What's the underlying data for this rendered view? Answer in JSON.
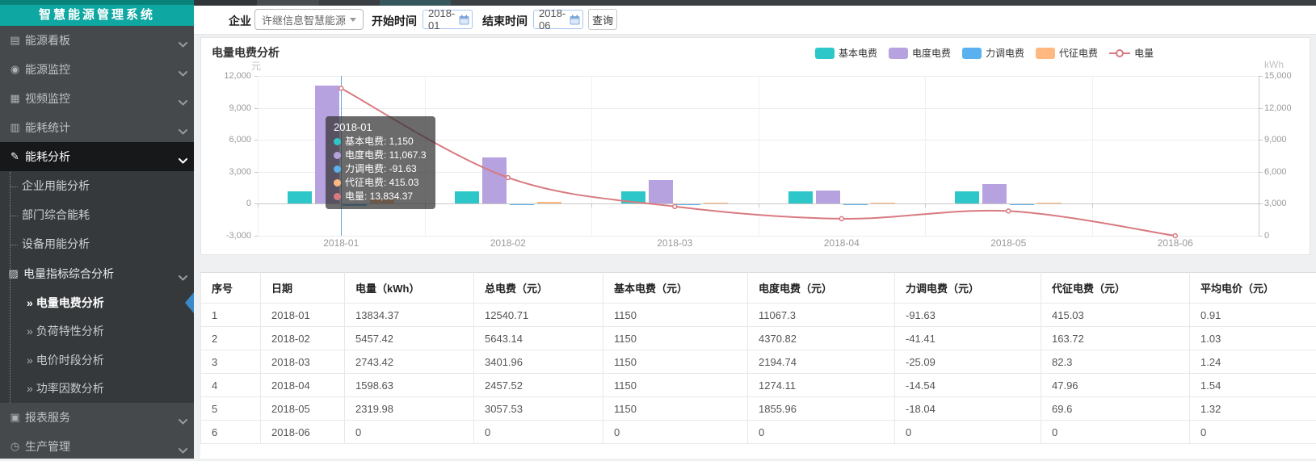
{
  "sidebar": {
    "title": "智慧能源管理系统",
    "menu": [
      {
        "label": "能源看板",
        "icon": "board-icon",
        "glyph": "▤",
        "level": 1,
        "chevron": true
      },
      {
        "label": "能源监控",
        "icon": "camera-icon",
        "glyph": "◉",
        "level": 1,
        "chevron": true
      },
      {
        "label": "视频监控",
        "icon": "video-wall-icon",
        "glyph": "▦",
        "level": 1,
        "chevron": true
      },
      {
        "label": "能耗统计",
        "icon": "bar-stats-icon",
        "glyph": "▥",
        "level": 1,
        "chevron": true
      },
      {
        "label": "能耗分析",
        "icon": "analysis-pen-icon",
        "glyph": "✎",
        "level": 1,
        "chevron": true,
        "state": "active"
      },
      {
        "label": "企业用能分析",
        "level": 2
      },
      {
        "label": "部门综合能耗",
        "level": 2
      },
      {
        "label": "设备用能分析",
        "level": 2
      },
      {
        "label": "电量指标综合分析",
        "icon": "chart-grid-icon",
        "glyph": "▨",
        "level": 2,
        "group": true,
        "chevron": true
      },
      {
        "label": "电量电费分析",
        "level": 3,
        "state": "selected"
      },
      {
        "label": "负荷特性分析",
        "level": 3
      },
      {
        "label": "电价时段分析",
        "level": 3
      },
      {
        "label": "功率因数分析",
        "level": 3
      },
      {
        "label": "报表服务",
        "icon": "report-icon",
        "glyph": "▣",
        "level": 1,
        "chevron": true
      },
      {
        "label": "生产管理",
        "icon": "clock-icon",
        "glyph": "◷",
        "level": 1,
        "chevron": true
      }
    ]
  },
  "topbar": {
    "company_label": "企业",
    "company_value": "许继信息智慧能源",
    "start_label": "开始时间",
    "start_value": "2018-01",
    "end_label": "结束时间",
    "end_value": "2018-06",
    "search_button": "查询"
  },
  "chart": {
    "title": "电量电费分析",
    "legend": [
      {
        "name": "基本电费",
        "type": "bar",
        "color": "#2ec7c9"
      },
      {
        "name": "电度电费",
        "type": "bar",
        "color": "#b6a2de"
      },
      {
        "name": "力调电费",
        "type": "bar",
        "color": "#5ab1ef"
      },
      {
        "name": "代征电费",
        "type": "bar",
        "color": "#ffb980"
      },
      {
        "name": "电量",
        "type": "line",
        "color": "#d87a80"
      }
    ],
    "tooltip": {
      "title": "2018-01",
      "rows": [
        {
          "name": "基本电费",
          "value": "1,150",
          "color": "#2ec7c9"
        },
        {
          "name": "电度电费",
          "value": "11,067.3",
          "color": "#b6a2de"
        },
        {
          "name": "力调电费",
          "value": "-91.63",
          "color": "#5ab1ef"
        },
        {
          "name": "代征电费",
          "value": "415.03",
          "color": "#ffb980"
        },
        {
          "name": "电量",
          "value": "13,834.37",
          "color": "#d87a80"
        }
      ]
    }
  },
  "chart_data": {
    "type": "bar",
    "title": "电量电费分析",
    "categories": [
      "2018-01",
      "2018-02",
      "2018-03",
      "2018-04",
      "2018-05",
      "2018-06"
    ],
    "series": [
      {
        "name": "基本电费",
        "type": "bar",
        "color": "#2ec7c9",
        "axis": "left",
        "values": [
          1150,
          1150,
          1150,
          1150,
          1150,
          0
        ]
      },
      {
        "name": "电度电费",
        "type": "bar",
        "color": "#b6a2de",
        "axis": "left",
        "values": [
          11067.3,
          4370.82,
          2194.74,
          1274.11,
          1855.96,
          0
        ]
      },
      {
        "name": "力调电费",
        "type": "bar",
        "color": "#5ab1ef",
        "axis": "left",
        "values": [
          -91.63,
          -41.41,
          -25.09,
          -14.54,
          -18.04,
          0
        ]
      },
      {
        "name": "代征电费",
        "type": "bar",
        "color": "#ffb980",
        "axis": "left",
        "values": [
          415.03,
          163.72,
          82.3,
          47.96,
          69.6,
          0
        ]
      },
      {
        "name": "电量",
        "type": "line",
        "color": "#d87a80",
        "axis": "right",
        "values": [
          13834.37,
          5457.42,
          2743.42,
          1598.63,
          2319.98,
          0
        ]
      }
    ],
    "left_axis": {
      "name": "元",
      "min": -3000,
      "max": 12000,
      "ticks": [
        "12,000",
        "9,000",
        "6,000",
        "3,000",
        "0",
        "-3,000"
      ]
    },
    "right_axis": {
      "name": "kWh",
      "min": 0,
      "max": 15000,
      "ticks": [
        "15,000",
        "12,000",
        "9,000",
        "6,000",
        "3,000",
        "0"
      ]
    },
    "grid": true,
    "legend_position": "top-right"
  },
  "table": {
    "headers": [
      "序号",
      "日期",
      "电量（kWh）",
      "总电费（元）",
      "基本电费（元）",
      "电度电费（元）",
      "力调电费（元）",
      "代征电费（元）",
      "平均电价（元）"
    ],
    "rows": [
      [
        "1",
        "2018-01",
        "13834.37",
        "12540.71",
        "1150",
        "11067.3",
        "-91.63",
        "415.03",
        "0.91"
      ],
      [
        "2",
        "2018-02",
        "5457.42",
        "5643.14",
        "1150",
        "4370.82",
        "-41.41",
        "163.72",
        "1.03"
      ],
      [
        "3",
        "2018-03",
        "2743.42",
        "3401.96",
        "1150",
        "2194.74",
        "-25.09",
        "82.3",
        "1.24"
      ],
      [
        "4",
        "2018-04",
        "1598.63",
        "2457.52",
        "1150",
        "1274.11",
        "-14.54",
        "47.96",
        "1.54"
      ],
      [
        "5",
        "2018-05",
        "2319.98",
        "3057.53",
        "1150",
        "1855.96",
        "-18.04",
        "69.6",
        "1.32"
      ],
      [
        "6",
        "2018-06",
        "0",
        "0",
        "0",
        "0",
        "0",
        "0",
        "0"
      ]
    ]
  }
}
